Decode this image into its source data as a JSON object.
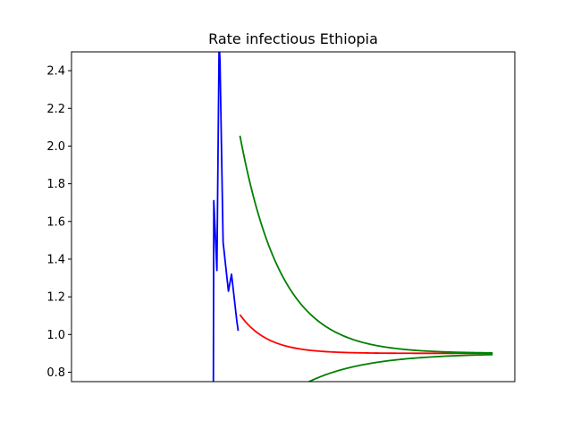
{
  "chart_data": {
    "type": "line",
    "title": "Rate infectious Ethiopia",
    "xlabel": "",
    "ylabel": "",
    "ylim": [
      0.75,
      2.5
    ],
    "xlim": [
      0,
      100
    ],
    "x_ticks_visible": false,
    "yticks": [
      "0.8",
      "1.0",
      "1.2",
      "1.4",
      "1.6",
      "1.8",
      "2.0",
      "2.2",
      "2.4"
    ],
    "grid": false,
    "series": [
      {
        "color": "#0000ff",
        "points": [
          [
            32.0,
            0.7
          ],
          [
            32.1,
            1.71
          ],
          [
            32.8,
            1.34
          ],
          [
            33.3,
            2.55
          ],
          [
            33.5,
            2.45
          ],
          [
            34.2,
            1.49
          ],
          [
            35.4,
            1.23
          ],
          [
            36.1,
            1.32
          ],
          [
            37.3,
            1.07
          ],
          [
            37.6,
            1.02
          ]
        ]
      },
      {
        "color": "#ff0000",
        "start": 38.0,
        "end": 95.0,
        "asymptote": 0.9,
        "amplitude": 0.205,
        "decay": 0.16
      },
      {
        "color": "#008000",
        "start": 38.0,
        "end": 95.0,
        "asymptote": 0.9,
        "amplitude": 1.155,
        "decay": 0.108
      },
      {
        "color": "#008000",
        "start": 53.0,
        "end": 95.0,
        "asymptote": 0.9,
        "amplitude": -0.157,
        "decay": 0.075
      }
    ]
  }
}
